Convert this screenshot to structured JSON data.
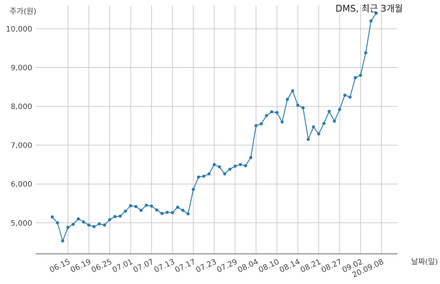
{
  "chart_data": {
    "type": "line",
    "title": "DMS, 최근 3개월",
    "ylabel": "주가(원)",
    "xlabel": "날짜(일)",
    "ylim": [
      4200,
      10600
    ],
    "yticks": [
      5000,
      6000,
      7000,
      8000,
      9000,
      10000
    ],
    "ytick_labels": [
      "5,000",
      "6,000",
      "7,000",
      "8,000",
      "9,000",
      "10,000"
    ],
    "xtick_labels": [
      "06.15",
      "06.19",
      "06.25",
      "07.01",
      "07.07",
      "07.13",
      "07.17",
      "07.23",
      "07.29",
      "08.04",
      "08.10",
      "08.14",
      "08.21",
      "08.27",
      "09.02",
      "20.09.08"
    ],
    "xtick_index": [
      3,
      7,
      11,
      15,
      19,
      23,
      27,
      31,
      35,
      39,
      43,
      47,
      51,
      55,
      59,
      63
    ],
    "grid": true,
    "line_color": "#2b7bb0",
    "series": [
      {
        "values": [
          5150,
          5000,
          4530,
          4880,
          4960,
          5100,
          5020,
          4940,
          4900,
          4970,
          4940,
          5080,
          5160,
          5170,
          5300,
          5440,
          5420,
          5320,
          5450,
          5430,
          5330,
          5240,
          5270,
          5260,
          5400,
          5320,
          5230,
          5860,
          6180,
          6200,
          6260,
          6500,
          6440,
          6260,
          6380,
          6460,
          6500,
          6470,
          6680,
          7500,
          7550,
          7760,
          7860,
          7840,
          7600,
          8180,
          8400,
          8030,
          7960,
          7150,
          7470,
          7290,
          7560,
          7870,
          7620,
          7920,
          8290,
          8240,
          8740,
          8800,
          9380,
          10200,
          10400
        ]
      }
    ]
  }
}
